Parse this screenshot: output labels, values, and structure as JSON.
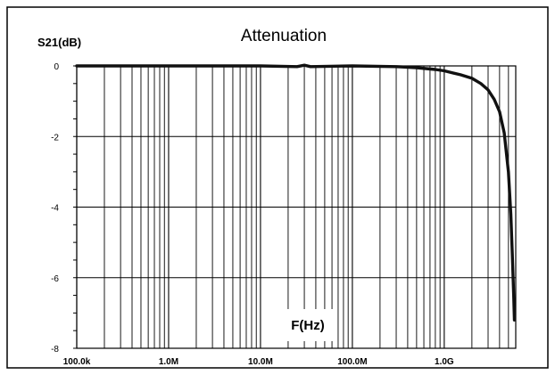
{
  "chart_data": {
    "type": "line",
    "title": "Attenuation",
    "ylabel": "S21(dB)",
    "xlabel": "F(Hz)",
    "x_scale": "log",
    "xlim": [
      100000,
      6000000000
    ],
    "ylim": [
      -8,
      0
    ],
    "x_ticks": [
      {
        "value": 100000,
        "label": "100.0k"
      },
      {
        "value": 1000000,
        "label": "1.0M"
      },
      {
        "value": 10000000,
        "label": "10.0M"
      },
      {
        "value": 100000000,
        "label": "100.0M"
      },
      {
        "value": 1000000000,
        "label": "1.0G"
      }
    ],
    "y_ticks": [
      {
        "value": 0,
        "label": "0"
      },
      {
        "value": -2,
        "label": "-2"
      },
      {
        "value": -4,
        "label": "-4"
      },
      {
        "value": -6,
        "label": "-6"
      },
      {
        "value": -8,
        "label": "-8"
      }
    ],
    "grid": true,
    "series": [
      {
        "x": [
          100000,
          1000000,
          10000000,
          25000000,
          30000000,
          35000000,
          100000000,
          300000000,
          500000000,
          800000000,
          1000000000,
          1500000000,
          2000000000,
          2500000000,
          3000000000,
          3500000000,
          4000000000,
          4500000000,
          5000000000,
          5300000000,
          5500000000,
          5700000000,
          5800000000
        ],
        "y": [
          0,
          0,
          0,
          -0.02,
          0.02,
          -0.02,
          0,
          -0.02,
          -0.05,
          -0.1,
          -0.14,
          -0.25,
          -0.35,
          -0.5,
          -0.68,
          -0.95,
          -1.3,
          -1.9,
          -3.0,
          -4.2,
          -5.3,
          -6.5,
          -7.2
        ]
      }
    ]
  }
}
